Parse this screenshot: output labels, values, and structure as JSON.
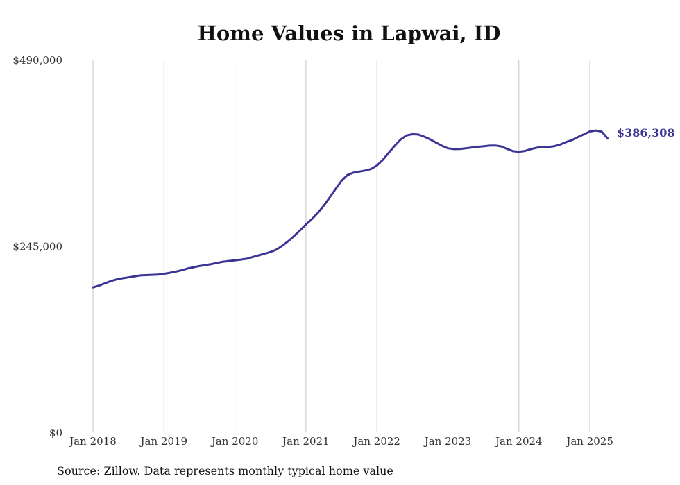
{
  "chart_data": {
    "type": "line",
    "title": "Home Values in Lapwai, ID",
    "source": "Source: Zillow. Data represents monthly typical home value",
    "xlabel": "",
    "ylabel": "",
    "ylim": [
      0,
      490000
    ],
    "y_ticks": [
      {
        "value": 0,
        "label": "$0"
      },
      {
        "value": 245000,
        "label": "$245,000"
      },
      {
        "value": 490000,
        "label": "$490,000"
      }
    ],
    "x_ticks": [
      "Jan 2018",
      "Jan 2019",
      "Jan 2020",
      "Jan 2021",
      "Jan 2022",
      "Jan 2023",
      "Jan 2024",
      "Jan 2025"
    ],
    "grid": "vertical",
    "line_color": "#3c3494",
    "end_label": "$386,308",
    "series": [
      {
        "dates": [
          "2018-01",
          "2018-02",
          "2018-03",
          "2018-04",
          "2018-05",
          "2018-06",
          "2018-07",
          "2018-08",
          "2018-09",
          "2018-10",
          "2018-11",
          "2018-12",
          "2019-01",
          "2019-02",
          "2019-03",
          "2019-04",
          "2019-05",
          "2019-06",
          "2019-07",
          "2019-08",
          "2019-09",
          "2019-10",
          "2019-11",
          "2019-12",
          "2020-01",
          "2020-02",
          "2020-03",
          "2020-04",
          "2020-05",
          "2020-06",
          "2020-07",
          "2020-08",
          "2020-09",
          "2020-10",
          "2020-11",
          "2020-12",
          "2021-01",
          "2021-02",
          "2021-03",
          "2021-04",
          "2021-05",
          "2021-06",
          "2021-07",
          "2021-08",
          "2021-09",
          "2021-10",
          "2021-11",
          "2021-12",
          "2022-01",
          "2022-02",
          "2022-03",
          "2022-04",
          "2022-05",
          "2022-06",
          "2022-07",
          "2022-08",
          "2022-09",
          "2022-10",
          "2022-11",
          "2022-12",
          "2023-01",
          "2023-02",
          "2023-03",
          "2023-04",
          "2023-05",
          "2023-06",
          "2023-07",
          "2023-08",
          "2023-09",
          "2023-10",
          "2023-11",
          "2023-12",
          "2024-01",
          "2024-02",
          "2024-03",
          "2024-04",
          "2024-05",
          "2024-06",
          "2024-07",
          "2024-08",
          "2024-09",
          "2024-10",
          "2024-11",
          "2024-12",
          "2025-01",
          "2025-02",
          "2025-03",
          "2025-04"
        ],
        "values": [
          190500,
          192800,
          195800,
          198700,
          201000,
          202600,
          203800,
          205000,
          206300,
          206700,
          207000,
          207400,
          208400,
          209800,
          211200,
          213200,
          215400,
          217100,
          218600,
          219900,
          221200,
          222800,
          224400,
          225300,
          226200,
          227100,
          228200,
          230500,
          232700,
          234800,
          237100,
          240300,
          245400,
          251200,
          258100,
          265600,
          273300,
          280200,
          288300,
          297800,
          308600,
          319800,
          330600,
          338300,
          341400,
          342800,
          344200,
          346200,
          350800,
          358300,
          367600,
          376800,
          385000,
          390400,
          391900,
          391500,
          388700,
          385200,
          380900,
          376800,
          373500,
          372400,
          372600,
          373400,
          374500,
          375400,
          376000,
          376900,
          377100,
          375900,
          372700,
          369600,
          368900,
          369900,
          372300,
          374200,
          375000,
          375200,
          376200,
          378400,
          381700,
          384300,
          388300,
          391800,
          395600,
          396800,
          395400,
          386308
        ]
      }
    ]
  }
}
